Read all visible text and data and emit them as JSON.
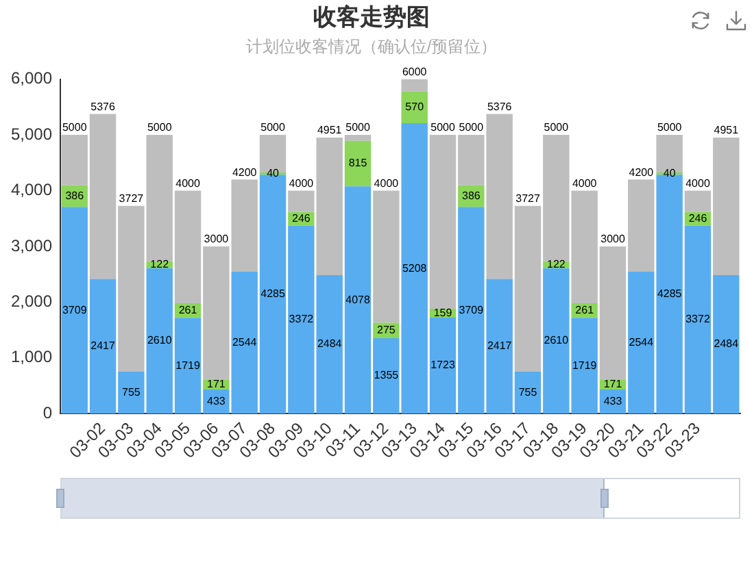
{
  "chart_data": {
    "type": "bar",
    "title": "收客走势图",
    "subtitle": "计划位收客情况（确认位/预留位）",
    "categories": [
      null,
      "03-02",
      "03-03",
      "03-04",
      "03-05",
      "03-06",
      "03-07",
      "03-08",
      "03-09",
      "03-10",
      "03-11",
      "03-12",
      "03-13",
      "03-14",
      "03-15",
      "03-16",
      "03-17",
      "03-18",
      "03-19",
      "03-20",
      "03-21",
      "03-22",
      "03-23",
      null
    ],
    "stacked": true,
    "series": [
      {
        "color": "#58adf0",
        "values": [
          3709,
          2417,
          755,
          2610,
          1719,
          433,
          2544,
          4285,
          3372,
          2484,
          4078,
          1355,
          5208,
          1723,
          3709,
          2417,
          755,
          2610,
          1719,
          433,
          2544,
          4285,
          3372,
          2484
        ],
        "value_labels": [
          "3709",
          "2417",
          "755",
          "2610",
          "1719",
          "433",
          "2544",
          "4285",
          "3372",
          "2484",
          "4078",
          "1355",
          "5208",
          "1723",
          "3709",
          "2417",
          "755",
          "2610",
          "1719",
          "433",
          "2544",
          "4285",
          "3372",
          "2484"
        ]
      },
      {
        "color": "#8cd65a",
        "values": [
          386,
          0,
          0,
          122,
          261,
          171,
          0,
          40,
          246,
          0,
          815,
          275,
          570,
          159,
          386,
          0,
          0,
          122,
          261,
          171,
          0,
          40,
          246,
          0
        ],
        "value_labels": [
          "386",
          null,
          null,
          "122",
          "261",
          "171",
          null,
          "40",
          "246",
          null,
          "815",
          "275",
          "570",
          "159",
          "386",
          null,
          null,
          "122",
          "261",
          "171",
          null,
          "40",
          "246",
          null
        ]
      },
      {
        "color": "#bebebe",
        "values": [
          905,
          2959,
          2972,
          2268,
          2020,
          2396,
          1656,
          675,
          382,
          2467,
          107,
          2370,
          222,
          3118,
          905,
          2959,
          2972,
          2268,
          2020,
          2396,
          1656,
          675,
          382,
          2467
        ]
      }
    ],
    "totals": [
      "5000",
      "5376",
      "3727",
      "5000",
      "4000",
      "3000",
      "4200",
      "5000",
      "4000",
      "4951",
      "5000",
      "4000",
      "6000",
      "5000",
      "5000",
      "5376",
      "3727",
      "5000",
      "4000",
      "3000",
      "4200",
      "5000",
      "4000",
      "4951"
    ],
    "ylim": [
      0,
      6000
    ],
    "yticks": [
      0,
      {
        "value": 1000,
        "label": "1,000"
      },
      {
        "value": 2000,
        "label": "2,000"
      },
      {
        "value": 3000,
        "label": "3,000"
      },
      {
        "value": 4000,
        "label": "4,000"
      },
      {
        "value": 5000,
        "label": "5,000"
      },
      {
        "value": 6000,
        "label": "6,000"
      }
    ]
  }
}
